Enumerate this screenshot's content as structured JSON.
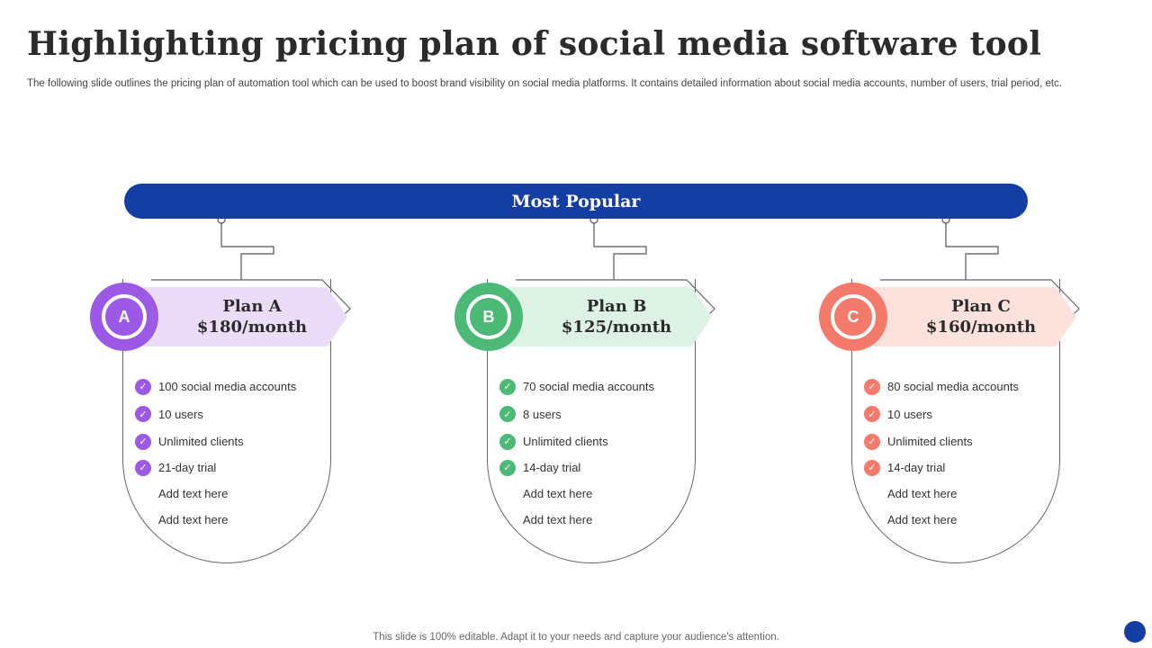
{
  "title": "Highlighting pricing plan of social media software tool",
  "subtitle": "The following slide outlines the pricing plan of automation tool which can be used to boost brand visibility on social media platforms. It contains detailed information about social media accounts, number of users, trial period, etc.",
  "banner": "Most Popular",
  "plans": [
    {
      "badge": "A",
      "name": "Plan A",
      "price": "$180/month",
      "accent": "#9b59e6",
      "tab_color": "#ebddf7",
      "features": [
        "100 social media accounts",
        "10 users",
        "Unlimited clients",
        "21-day trial",
        "Add text here",
        "Add text here"
      ]
    },
    {
      "badge": "B",
      "name": "Plan B",
      "price": "$125/month",
      "accent": "#4cba76",
      "tab_color": "#ddf2e4",
      "features": [
        "70 social media accounts",
        "8 users",
        "Unlimited clients",
        "14-day trial",
        "Add text here",
        "Add text here"
      ]
    },
    {
      "badge": "C",
      "name": "Plan C",
      "price": "$160/month",
      "accent": "#f47a6b",
      "tab_color": "#fde1dc",
      "features": [
        "80 social media accounts",
        "10 users",
        "Unlimited clients",
        "14-day trial",
        "Add text here",
        "Add text here"
      ]
    }
  ],
  "footer": "This slide is 100% editable. Adapt it to your needs and capture your audience's attention.",
  "check_icon": "check-icon",
  "brand_color": "#153ea4"
}
